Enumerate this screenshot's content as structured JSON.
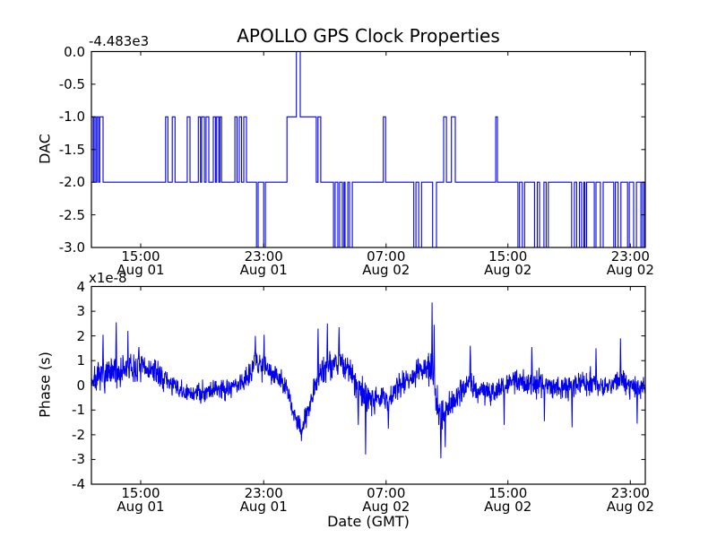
{
  "figure": {
    "title": "APOLLO GPS Clock Properties",
    "xlabel": "Date (GMT)",
    "background_color": "#ffffff",
    "line_color": "#0000ee"
  },
  "chart_data": [
    {
      "type": "line",
      "subplot": "top",
      "ylabel": "DAC",
      "offset_text": "-4.483e3",
      "ylim": [
        -3.0,
        0.0
      ],
      "grid": false,
      "legend": "none",
      "y_tick_labels": [
        "0.0",
        "-0.5",
        "-1.0",
        "-1.5",
        "-2.0",
        "-2.5",
        "-3.0"
      ],
      "y_tick_values": [
        0,
        -0.5,
        -1,
        -1.5,
        -2,
        -2.5,
        -3
      ],
      "x_ticks": [
        {
          "frac": 0.089,
          "time": "15:00",
          "date": "Aug 01"
        },
        {
          "frac": 0.311,
          "time": "23:00",
          "date": "Aug 01"
        },
        {
          "frac": 0.532,
          "time": "07:00",
          "date": "Aug 02"
        },
        {
          "frac": 0.752,
          "time": "15:00",
          "date": "Aug 02"
        },
        {
          "frac": 0.973,
          "time": "23:00",
          "date": "Aug 02"
        }
      ],
      "line_color": "#0000ee",
      "value_note": "axis offset -4.483e3: plotted level L means DAC = -4483 + L",
      "steps": [
        [
          0.0,
          -1
        ],
        [
          0.003,
          -2
        ],
        [
          0.005,
          -1
        ],
        [
          0.008,
          -2
        ],
        [
          0.01,
          -1
        ],
        [
          0.013,
          -2
        ],
        [
          0.015,
          -1
        ],
        [
          0.021,
          -2
        ],
        [
          0.134,
          -1
        ],
        [
          0.138,
          -2
        ],
        [
          0.146,
          -1
        ],
        [
          0.151,
          -2
        ],
        [
          0.173,
          -1
        ],
        [
          0.178,
          -2
        ],
        [
          0.193,
          -1
        ],
        [
          0.197,
          -2
        ],
        [
          0.199,
          -1
        ],
        [
          0.204,
          -2
        ],
        [
          0.207,
          -1
        ],
        [
          0.212,
          -2
        ],
        [
          0.22,
          -1
        ],
        [
          0.224,
          -2
        ],
        [
          0.226,
          -1
        ],
        [
          0.23,
          -2
        ],
        [
          0.232,
          -1
        ],
        [
          0.235,
          -2
        ],
        [
          0.259,
          -1
        ],
        [
          0.263,
          -2
        ],
        [
          0.267,
          -1
        ],
        [
          0.271,
          -2
        ],
        [
          0.275,
          -1
        ],
        [
          0.28,
          -2
        ],
        [
          0.298,
          -3
        ],
        [
          0.301,
          -2
        ],
        [
          0.311,
          -3
        ],
        [
          0.314,
          -2
        ],
        [
          0.353,
          -1
        ],
        [
          0.37,
          0
        ],
        [
          0.377,
          -1
        ],
        [
          0.406,
          -2
        ],
        [
          0.409,
          -1
        ],
        [
          0.414,
          -2
        ],
        [
          0.437,
          -3
        ],
        [
          0.44,
          -2
        ],
        [
          0.445,
          -3
        ],
        [
          0.448,
          -2
        ],
        [
          0.453,
          -3
        ],
        [
          0.456,
          -2
        ],
        [
          0.458,
          -3
        ],
        [
          0.463,
          -2
        ],
        [
          0.466,
          -3
        ],
        [
          0.471,
          -2
        ],
        [
          0.527,
          -1
        ],
        [
          0.531,
          -2
        ],
        [
          0.582,
          -3
        ],
        [
          0.586,
          -2
        ],
        [
          0.591,
          -3
        ],
        [
          0.596,
          -2
        ],
        [
          0.616,
          -3
        ],
        [
          0.623,
          -2
        ],
        [
          0.636,
          -1
        ],
        [
          0.641,
          -2
        ],
        [
          0.65,
          -1
        ],
        [
          0.657,
          -2
        ],
        [
          0.73,
          -1
        ],
        [
          0.733,
          -2
        ],
        [
          0.77,
          -3
        ],
        [
          0.773,
          -2
        ],
        [
          0.778,
          -3
        ],
        [
          0.782,
          -2
        ],
        [
          0.8,
          -3
        ],
        [
          0.805,
          -2
        ],
        [
          0.809,
          -3
        ],
        [
          0.817,
          -2
        ],
        [
          0.821,
          -3
        ],
        [
          0.825,
          -2
        ],
        [
          0.867,
          -3
        ],
        [
          0.872,
          -2
        ],
        [
          0.876,
          -3
        ],
        [
          0.881,
          -2
        ],
        [
          0.885,
          -3
        ],
        [
          0.889,
          -2
        ],
        [
          0.891,
          -3
        ],
        [
          0.894,
          -2
        ],
        [
          0.908,
          -3
        ],
        [
          0.911,
          -2
        ],
        [
          0.919,
          -3
        ],
        [
          0.924,
          -2
        ],
        [
          0.943,
          -3
        ],
        [
          0.946,
          -2
        ],
        [
          0.951,
          -3
        ],
        [
          0.956,
          -2
        ],
        [
          0.968,
          -3
        ],
        [
          0.971,
          -2
        ],
        [
          0.979,
          -3
        ],
        [
          0.984,
          -2
        ],
        [
          0.992,
          -3
        ],
        [
          0.995,
          -2
        ],
        [
          0.998,
          -3
        ]
      ]
    },
    {
      "type": "line",
      "subplot": "bottom",
      "ylabel": "Phase (s)",
      "multiplier_text": "x1e-8",
      "xlabel": "Date (GMT)",
      "ylim": [
        -4,
        4
      ],
      "grid": false,
      "legend": "none",
      "y_tick_labels": [
        "4",
        "3",
        "2",
        "1",
        "0",
        "-1",
        "-2",
        "-3",
        "-4"
      ],
      "y_tick_values": [
        4,
        3,
        2,
        1,
        0,
        -1,
        -2,
        -3,
        -4
      ],
      "x_ticks": [
        {
          "frac": 0.089,
          "time": "15:00",
          "date": "Aug 01"
        },
        {
          "frac": 0.311,
          "time": "23:00",
          "date": "Aug 01"
        },
        {
          "frac": 0.532,
          "time": "07:00",
          "date": "Aug 02"
        },
        {
          "frac": 0.752,
          "time": "15:00",
          "date": "Aug 02"
        },
        {
          "frac": 0.973,
          "time": "23:00",
          "date": "Aug 02"
        }
      ],
      "line_color": "#0000ee",
      "value_note": "noisy phase series in units of 1e-8 s; trend = [x_frac, mean, noise_half_band]",
      "trend": [
        [
          0.0,
          0.2,
          0.55
        ],
        [
          0.021,
          0.35,
          0.6
        ],
        [
          0.045,
          0.5,
          0.7
        ],
        [
          0.066,
          0.6,
          0.75
        ],
        [
          0.094,
          0.7,
          0.55
        ],
        [
          0.118,
          0.5,
          0.5
        ],
        [
          0.142,
          0.1,
          0.45
        ],
        [
          0.167,
          -0.35,
          0.45
        ],
        [
          0.191,
          -0.3,
          0.4
        ],
        [
          0.218,
          -0.15,
          0.5
        ],
        [
          0.248,
          -0.1,
          0.5
        ],
        [
          0.272,
          0.1,
          0.5
        ],
        [
          0.296,
          0.9,
          0.55
        ],
        [
          0.312,
          0.8,
          0.55
        ],
        [
          0.333,
          0.45,
          0.5
        ],
        [
          0.353,
          -0.2,
          0.45
        ],
        [
          0.369,
          -1.4,
          0.4
        ],
        [
          0.379,
          -1.8,
          0.4
        ],
        [
          0.393,
          -0.8,
          0.45
        ],
        [
          0.409,
          0.4,
          0.6
        ],
        [
          0.426,
          0.8,
          0.7
        ],
        [
          0.447,
          1.0,
          0.7
        ],
        [
          0.466,
          0.6,
          0.55
        ],
        [
          0.482,
          -0.2,
          0.6
        ],
        [
          0.495,
          -0.4,
          0.7
        ],
        [
          0.515,
          -0.5,
          0.5
        ],
        [
          0.536,
          -0.6,
          0.5
        ],
        [
          0.555,
          0.0,
          0.5
        ],
        [
          0.579,
          0.4,
          0.55
        ],
        [
          0.595,
          0.6,
          0.6
        ],
        [
          0.612,
          0.7,
          0.8
        ],
        [
          0.621,
          -0.4,
          0.7
        ],
        [
          0.631,
          -1.2,
          0.6
        ],
        [
          0.644,
          -0.9,
          0.5
        ],
        [
          0.663,
          -0.3,
          0.5
        ],
        [
          0.684,
          0.1,
          0.55
        ],
        [
          0.709,
          -0.3,
          0.5
        ],
        [
          0.733,
          -0.2,
          0.5
        ],
        [
          0.757,
          0.2,
          0.5
        ],
        [
          0.781,
          0.1,
          0.55
        ],
        [
          0.806,
          0.1,
          0.5
        ],
        [
          0.83,
          0.0,
          0.5
        ],
        [
          0.854,
          -0.1,
          0.5
        ],
        [
          0.879,
          0.1,
          0.5
        ],
        [
          0.903,
          0.1,
          0.55
        ],
        [
          0.927,
          -0.1,
          0.5
        ],
        [
          0.955,
          0.2,
          0.55
        ],
        [
          0.976,
          -0.1,
          0.5
        ],
        [
          1.0,
          0.0,
          0.45
        ]
      ],
      "spikes": [
        [
          0.021,
          2.05
        ],
        [
          0.045,
          2.55
        ],
        [
          0.066,
          2.2
        ],
        [
          0.086,
          1.55
        ],
        [
          0.296,
          2.0
        ],
        [
          0.312,
          2.05
        ],
        [
          0.379,
          -2.25
        ],
        [
          0.409,
          2.3
        ],
        [
          0.426,
          2.5
        ],
        [
          0.447,
          2.35
        ],
        [
          0.482,
          -1.6
        ],
        [
          0.495,
          -2.8
        ],
        [
          0.536,
          -1.75
        ],
        [
          0.615,
          3.35
        ],
        [
          0.619,
          2.45
        ],
        [
          0.631,
          -2.95
        ],
        [
          0.639,
          -2.5
        ],
        [
          0.684,
          1.6
        ],
        [
          0.745,
          -1.6
        ],
        [
          0.795,
          1.55
        ],
        [
          0.818,
          -1.45
        ],
        [
          0.868,
          -1.7
        ],
        [
          0.911,
          1.5
        ],
        [
          0.955,
          1.9
        ],
        [
          0.985,
          -1.55
        ]
      ],
      "noise_seed": 7,
      "samples": 1900
    }
  ]
}
